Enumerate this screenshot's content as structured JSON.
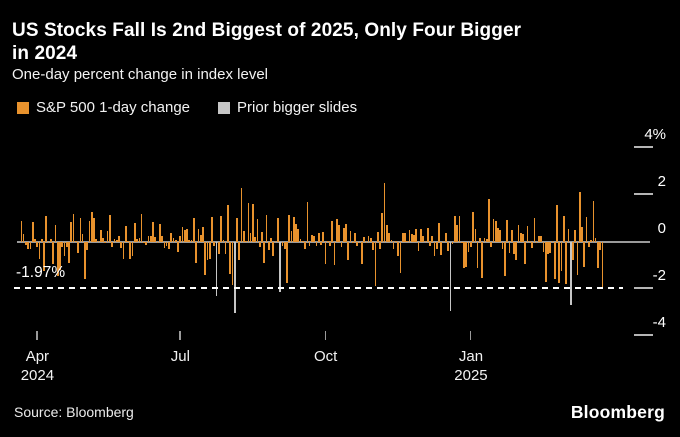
{
  "header": {
    "title": "US Stocks Fall Is 2nd Biggest of 2025, Only Four Bigger\nin 2024",
    "subtitle": "One-day percent change in index level"
  },
  "legend": {
    "items": [
      {
        "label": "S&P 500 1-day change",
        "color": "#E8922D"
      },
      {
        "label": "Prior bigger slides",
        "color": "#C6C6C6"
      }
    ]
  },
  "colors": {
    "background": "#000000",
    "sp500_bar": "#E8922D",
    "prior_slide_bar": "#C6C6C6",
    "zero_line": "#9A9A9A",
    "threshold_line": "#FFFFFF"
  },
  "footer": {
    "source": "Source: Bloomberg",
    "logo": "Bloomberg"
  },
  "chart_data": {
    "type": "bar",
    "title": "US Stocks Fall Is 2nd Biggest of 2025, Only Four Bigger in 2024",
    "subtitle": "One-day percent change in index level",
    "xlabel": "",
    "ylabel": "One-day % change",
    "ylim": [
      -4.6,
      4.6
    ],
    "grid": false,
    "legend_position": "top-left",
    "annotation": {
      "label": "-1.97%",
      "value": -1.97
    },
    "yticks": [
      {
        "label": "4%",
        "value": 4
      },
      {
        "label": "2",
        "value": 2
      },
      {
        "label": "0",
        "value": 0
      },
      {
        "label": "-2",
        "value": -2
      },
      {
        "label": "-4",
        "value": -4
      }
    ],
    "xticks": [
      {
        "label": "Apr",
        "year": "2024",
        "index": 7
      },
      {
        "label": "Jul",
        "year": "",
        "index": 70
      },
      {
        "label": "Oct",
        "year": "",
        "index": 134
      },
      {
        "label": "Jan",
        "year": "2025",
        "index": 198
      }
    ],
    "series_note": "points are [date, one-day % change, 1-if-prior-bigger-slide(white bar)]",
    "points": [
      [
        "2024-03-20",
        0.89
      ],
      [
        "2024-03-21",
        0.32
      ],
      [
        "2024-03-22",
        -0.14
      ],
      [
        "2024-03-25",
        -0.31
      ],
      [
        "2024-03-26",
        -0.28
      ],
      [
        "2024-03-27",
        0.86
      ],
      [
        "2024-03-28",
        0.11
      ],
      [
        "2024-04-01",
        -0.2
      ],
      [
        "2024-04-02",
        -0.72
      ],
      [
        "2024-04-03",
        0.11
      ],
      [
        "2024-04-04",
        -1.23
      ],
      [
        "2024-04-05",
        1.11
      ],
      [
        "2024-04-08",
        -0.04
      ],
      [
        "2024-04-09",
        0.14
      ],
      [
        "2024-04-10",
        -0.95
      ],
      [
        "2024-04-11",
        0.74
      ],
      [
        "2024-04-12",
        -1.46
      ],
      [
        "2024-04-15",
        -1.2
      ],
      [
        "2024-04-16",
        -0.21
      ],
      [
        "2024-04-17",
        -0.58
      ],
      [
        "2024-04-18",
        -0.22
      ],
      [
        "2024-04-19",
        -0.88
      ],
      [
        "2024-04-22",
        0.87
      ],
      [
        "2024-04-23",
        1.2
      ],
      [
        "2024-04-24",
        0.02
      ],
      [
        "2024-04-25",
        -0.46
      ],
      [
        "2024-04-26",
        1.02
      ],
      [
        "2024-04-29",
        0.32
      ],
      [
        "2024-04-30",
        -1.57
      ],
      [
        "2024-05-01",
        -0.34
      ],
      [
        "2024-05-02",
        0.91
      ],
      [
        "2024-05-03",
        1.26
      ],
      [
        "2024-05-06",
        1.03
      ],
      [
        "2024-05-07",
        0.13
      ],
      [
        "2024-05-08",
        0.0
      ],
      [
        "2024-05-09",
        0.51
      ],
      [
        "2024-05-10",
        0.16
      ],
      [
        "2024-05-13",
        -0.02
      ],
      [
        "2024-05-14",
        0.48
      ],
      [
        "2024-05-15",
        1.17
      ],
      [
        "2024-05-16",
        -0.21
      ],
      [
        "2024-05-17",
        0.12
      ],
      [
        "2024-05-20",
        0.09
      ],
      [
        "2024-05-21",
        0.25
      ],
      [
        "2024-05-22",
        -0.27
      ],
      [
        "2024-05-23",
        -0.74
      ],
      [
        "2024-05-24",
        0.7
      ],
      [
        "2024-05-28",
        0.02
      ],
      [
        "2024-05-29",
        -0.74
      ],
      [
        "2024-05-30",
        -0.6
      ],
      [
        "2024-05-31",
        0.8
      ],
      [
        "2024-06-03",
        0.11
      ],
      [
        "2024-06-04",
        0.15
      ],
      [
        "2024-06-05",
        1.18
      ],
      [
        "2024-06-06",
        -0.02
      ],
      [
        "2024-06-07",
        -0.11
      ],
      [
        "2024-06-10",
        0.26
      ],
      [
        "2024-06-11",
        0.27
      ],
      [
        "2024-06-12",
        0.85
      ],
      [
        "2024-06-13",
        0.23
      ],
      [
        "2024-06-14",
        -0.04
      ],
      [
        "2024-06-17",
        0.77
      ],
      [
        "2024-06-18",
        0.25
      ],
      [
        "2024-06-20",
        -0.25
      ],
      [
        "2024-06-21",
        -0.16
      ],
      [
        "2024-06-24",
        -0.31
      ],
      [
        "2024-06-25",
        0.39
      ],
      [
        "2024-06-26",
        0.16
      ],
      [
        "2024-06-27",
        0.09
      ],
      [
        "2024-06-28",
        -0.41
      ],
      [
        "2024-07-01",
        0.27
      ],
      [
        "2024-07-02",
        0.62
      ],
      [
        "2024-07-03",
        0.51
      ],
      [
        "2024-07-05",
        0.54
      ],
      [
        "2024-07-08",
        0.1
      ],
      [
        "2024-07-09",
        0.07
      ],
      [
        "2024-07-10",
        1.02
      ],
      [
        "2024-07-11",
        -0.88
      ],
      [
        "2024-07-12",
        0.55
      ],
      [
        "2024-07-15",
        0.28
      ],
      [
        "2024-07-16",
        0.64
      ],
      [
        "2024-07-17",
        -1.39
      ],
      [
        "2024-07-18",
        -0.78
      ],
      [
        "2024-07-19",
        -0.71
      ],
      [
        "2024-07-22",
        1.08
      ],
      [
        "2024-07-23",
        -0.16
      ],
      [
        "2024-07-24",
        -2.31,
        1
      ],
      [
        "2024-07-25",
        -0.51
      ],
      [
        "2024-07-26",
        1.11
      ],
      [
        "2024-07-29",
        0.08
      ],
      [
        "2024-07-30",
        -0.5
      ],
      [
        "2024-07-31",
        1.58
      ],
      [
        "2024-08-01",
        -1.37
      ],
      [
        "2024-08-02",
        -1.84
      ],
      [
        "2024-08-05",
        -3.0,
        1
      ],
      [
        "2024-08-06",
        1.04
      ],
      [
        "2024-08-07",
        -0.77
      ],
      [
        "2024-08-08",
        2.3
      ],
      [
        "2024-08-09",
        0.47
      ],
      [
        "2024-08-12",
        0.0
      ],
      [
        "2024-08-13",
        1.68
      ],
      [
        "2024-08-14",
        0.38
      ],
      [
        "2024-08-15",
        1.61
      ],
      [
        "2024-08-16",
        0.2
      ],
      [
        "2024-08-19",
        0.97
      ],
      [
        "2024-08-20",
        -0.2
      ],
      [
        "2024-08-21",
        0.42
      ],
      [
        "2024-08-22",
        -0.89
      ],
      [
        "2024-08-23",
        1.15
      ],
      [
        "2024-08-26",
        -0.32
      ],
      [
        "2024-08-27",
        0.16
      ],
      [
        "2024-08-28",
        -0.6
      ],
      [
        "2024-08-29",
        0.0
      ],
      [
        "2024-08-30",
        1.01
      ],
      [
        "2024-09-03",
        -2.12,
        1
      ],
      [
        "2024-09-04",
        -0.16
      ],
      [
        "2024-09-05",
        -0.3
      ],
      [
        "2024-09-06",
        -1.73
      ],
      [
        "2024-09-09",
        1.16
      ],
      [
        "2024-09-10",
        0.45
      ],
      [
        "2024-09-11",
        1.07
      ],
      [
        "2024-09-12",
        0.75
      ],
      [
        "2024-09-13",
        0.54
      ],
      [
        "2024-09-16",
        0.13
      ],
      [
        "2024-09-17",
        0.03
      ],
      [
        "2024-09-18",
        -0.29
      ],
      [
        "2024-09-19",
        1.7
      ],
      [
        "2024-09-20",
        -0.19
      ],
      [
        "2024-09-23",
        0.28
      ],
      [
        "2024-09-24",
        0.25
      ],
      [
        "2024-09-25",
        -0.19
      ],
      [
        "2024-09-26",
        0.4
      ],
      [
        "2024-09-27",
        -0.13
      ],
      [
        "2024-09-30",
        0.42
      ],
      [
        "2024-10-01",
        -0.93
      ],
      [
        "2024-10-02",
        0.01
      ],
      [
        "2024-10-03",
        -0.17
      ],
      [
        "2024-10-04",
        0.9
      ],
      [
        "2024-10-07",
        -0.96
      ],
      [
        "2024-10-08",
        0.97
      ],
      [
        "2024-10-09",
        0.71
      ],
      [
        "2024-10-10",
        -0.21
      ],
      [
        "2024-10-11",
        0.61
      ],
      [
        "2024-10-14",
        0.77
      ],
      [
        "2024-10-15",
        -0.76
      ],
      [
        "2024-10-16",
        0.47
      ],
      [
        "2024-10-17",
        -0.02
      ],
      [
        "2024-10-18",
        0.4
      ],
      [
        "2024-10-21",
        -0.18
      ],
      [
        "2024-10-22",
        -0.05
      ],
      [
        "2024-10-23",
        -0.92
      ],
      [
        "2024-10-24",
        0.21
      ],
      [
        "2024-10-25",
        -0.03
      ],
      [
        "2024-10-28",
        0.27
      ],
      [
        "2024-10-29",
        0.16
      ],
      [
        "2024-10-30",
        -0.33
      ],
      [
        "2024-10-31",
        -1.86
      ],
      [
        "2024-11-01",
        0.41
      ],
      [
        "2024-11-04",
        -0.28
      ],
      [
        "2024-11-05",
        1.23
      ],
      [
        "2024-11-06",
        2.53
      ],
      [
        "2024-11-07",
        0.74
      ],
      [
        "2024-11-08",
        0.38
      ],
      [
        "2024-11-11",
        0.1
      ],
      [
        "2024-11-12",
        -0.29
      ],
      [
        "2024-11-13",
        0.02
      ],
      [
        "2024-11-14",
        -0.6
      ],
      [
        "2024-11-15",
        -1.32
      ],
      [
        "2024-11-18",
        0.39
      ],
      [
        "2024-11-19",
        0.4
      ],
      [
        "2024-11-20",
        0.0
      ],
      [
        "2024-11-21",
        0.53
      ],
      [
        "2024-11-22",
        0.35
      ],
      [
        "2024-11-25",
        0.3
      ],
      [
        "2024-11-26",
        0.57
      ],
      [
        "2024-11-27",
        -0.38
      ],
      [
        "2024-11-29",
        0.56
      ],
      [
        "2024-12-02",
        0.24
      ],
      [
        "2024-12-03",
        0.05
      ],
      [
        "2024-12-04",
        0.61
      ],
      [
        "2024-12-05",
        -0.19
      ],
      [
        "2024-12-06",
        0.25
      ],
      [
        "2024-12-09",
        -0.61
      ],
      [
        "2024-12-10",
        -0.3
      ],
      [
        "2024-12-11",
        0.82
      ],
      [
        "2024-12-12",
        -0.54
      ],
      [
        "2024-12-13",
        0.0
      ],
      [
        "2024-12-16",
        0.38
      ],
      [
        "2024-12-17",
        -0.39
      ],
      [
        "2024-12-18",
        -2.95,
        1
      ],
      [
        "2024-12-19",
        -0.09
      ],
      [
        "2024-12-20",
        1.09
      ],
      [
        "2024-12-23",
        0.73
      ],
      [
        "2024-12-24",
        1.1
      ],
      [
        "2024-12-26",
        -0.04
      ],
      [
        "2024-12-27",
        -1.11
      ],
      [
        "2024-12-30",
        -1.07
      ],
      [
        "2024-12-31",
        -0.43
      ],
      [
        "2025-01-02",
        -0.22
      ],
      [
        "2025-01-03",
        1.26
      ],
      [
        "2025-01-06",
        0.55
      ],
      [
        "2025-01-07",
        -1.11
      ],
      [
        "2025-01-08",
        0.16
      ],
      [
        "2025-01-10",
        -1.54
      ],
      [
        "2025-01-13",
        0.16
      ],
      [
        "2025-01-14",
        0.11
      ],
      [
        "2025-01-15",
        1.83
      ],
      [
        "2025-01-16",
        -0.21
      ],
      [
        "2025-01-17",
        1.0
      ],
      [
        "2025-01-21",
        0.88
      ],
      [
        "2025-01-22",
        0.61
      ],
      [
        "2025-01-23",
        0.53
      ],
      [
        "2025-01-24",
        -0.29
      ],
      [
        "2025-01-27",
        -1.46
      ],
      [
        "2025-01-28",
        0.92
      ],
      [
        "2025-01-29",
        -0.47
      ],
      [
        "2025-01-30",
        0.53
      ],
      [
        "2025-01-31",
        -0.5
      ],
      [
        "2025-02-03",
        -0.76
      ],
      [
        "2025-02-04",
        0.72
      ],
      [
        "2025-02-05",
        0.39
      ],
      [
        "2025-02-06",
        0.36
      ],
      [
        "2025-02-07",
        -0.95
      ],
      [
        "2025-02-10",
        0.67
      ],
      [
        "2025-02-11",
        0.03
      ],
      [
        "2025-02-12",
        -0.27
      ],
      [
        "2025-02-13",
        1.04
      ],
      [
        "2025-02-14",
        -0.01
      ],
      [
        "2025-02-18",
        0.24
      ],
      [
        "2025-02-19",
        0.24
      ],
      [
        "2025-02-20",
        -0.43
      ],
      [
        "2025-02-21",
        -1.71
      ],
      [
        "2025-02-24",
        -0.5
      ],
      [
        "2025-02-25",
        -0.47
      ],
      [
        "2025-02-26",
        0.01
      ],
      [
        "2025-02-27",
        -1.59
      ],
      [
        "2025-02-28",
        1.59
      ],
      [
        "2025-03-03",
        -1.76
      ],
      [
        "2025-03-04",
        -1.22
      ],
      [
        "2025-03-05",
        1.12
      ],
      [
        "2025-03-06",
        -1.78
      ],
      [
        "2025-03-07",
        0.55
      ],
      [
        "2025-03-10",
        -2.7,
        1
      ],
      [
        "2025-03-11",
        -0.76
      ],
      [
        "2025-03-12",
        0.49
      ],
      [
        "2025-03-13",
        -1.39
      ],
      [
        "2025-03-14",
        2.13
      ],
      [
        "2025-03-17",
        0.64
      ],
      [
        "2025-03-18",
        -1.07
      ],
      [
        "2025-03-19",
        1.08
      ],
      [
        "2025-03-20",
        -0.22
      ],
      [
        "2025-03-21",
        0.08
      ],
      [
        "2025-03-24",
        1.76
      ],
      [
        "2025-03-25",
        0.16
      ],
      [
        "2025-03-26",
        -1.12
      ],
      [
        "2025-03-27",
        -0.33
      ],
      [
        "2025-03-28",
        -1.97
      ]
    ]
  }
}
